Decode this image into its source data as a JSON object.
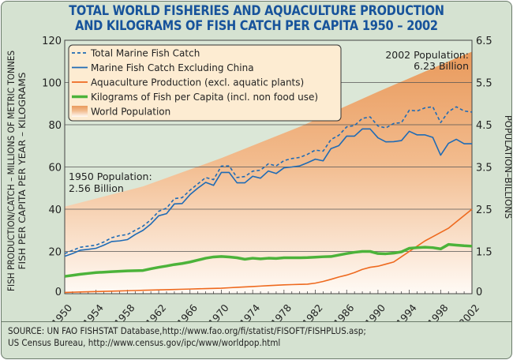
{
  "title": {
    "line1": "TOTAL WORLD FISHERIES AND AQUACULTURE PRODUCTION",
    "line2": "AND KILOGRAMS OF FISH CATCH PER CAPITA 1950 – 2002"
  },
  "source": {
    "line1": "SOURCE: UN FAO FISHSTAT Database,http://www.fao.org/fi/statist/FISOFT/FISHPLUS.asp;",
    "line2": "US Census Bureau, http://www.census.gov/ipc/www/worldpop.html"
  },
  "chart_data": {
    "type": "line",
    "title": "TOTAL WORLD FISHERIES AND AQUACULTURE PRODUCTION AND KILOGRAMS OF FISH CATCH PER CAPITA 1950 – 2002",
    "ylabel_left": [
      "FISH PRODUCTION/CATCH – MILLIONS OF METRIC TONNES",
      "FISH PER CAPITA PER YEAR – KILOGRAMS"
    ],
    "ylabel_right": "POPULATION–BILLIONS",
    "xlim": [
      1950,
      2002
    ],
    "ylim_left": [
      0,
      120
    ],
    "ylim_right": [
      0,
      6.5
    ],
    "x_ticks": [
      "1950",
      "1954",
      "1958",
      "1962",
      "1966",
      "1970",
      "1974",
      "1978",
      "1982",
      "1986",
      "1990",
      "1994",
      "1998",
      "2002"
    ],
    "y_ticks_left": [
      "0",
      "20",
      "40",
      "60",
      "80",
      "100",
      "120"
    ],
    "y_ticks_right": [
      "0",
      "1.5",
      "2.5",
      "3.5",
      "4.5",
      "5.5",
      "6.5"
    ],
    "grid": "horizontal",
    "legend_placement": "top-left",
    "annotations": [
      {
        "text1": "2002 Population:",
        "text2": "6.23 Billion"
      },
      {
        "text1": "1950 Population:",
        "text2": "2.56 Billion"
      }
    ],
    "years": [
      1950,
      1951,
      1952,
      1953,
      1954,
      1955,
      1956,
      1957,
      1958,
      1959,
      1960,
      1961,
      1962,
      1963,
      1964,
      1965,
      1966,
      1967,
      1968,
      1969,
      1970,
      1971,
      1972,
      1973,
      1974,
      1975,
      1976,
      1977,
      1978,
      1979,
      1980,
      1981,
      1982,
      1983,
      1984,
      1985,
      1986,
      1987,
      1988,
      1989,
      1990,
      1991,
      1992,
      1993,
      1994,
      1995,
      1996,
      1997,
      1998,
      1999,
      2000,
      2001,
      2002
    ],
    "series": [
      {
        "name": "Total Marine Fish Catch",
        "axis": "left",
        "color": "#1f6bb5",
        "style": "dashed",
        "values": [
          19,
          20.5,
          22,
          22.5,
          23,
          24.5,
          26.5,
          27.5,
          28,
          30,
          32,
          35,
          39,
          40.5,
          45,
          45.5,
          49,
          52,
          55,
          54,
          60.4,
          60.5,
          55,
          55.5,
          58,
          58.5,
          61.5,
          60.5,
          63,
          64,
          64.5,
          66,
          68,
          67.5,
          73,
          75,
          79,
          79.6,
          83,
          83.7,
          79.4,
          78.5,
          80.6,
          81,
          86.9,
          86.5,
          88,
          88.5,
          81,
          86.2,
          88.5,
          86.5,
          86
        ]
      },
      {
        "name": "Marine Fish Catch Excluding China",
        "axis": "left",
        "color": "#1f6bb5",
        "style": "solid",
        "values": [
          17.7,
          19,
          20.6,
          21,
          21.5,
          23,
          24.7,
          25,
          25.6,
          28,
          30,
          33,
          36.9,
          37.9,
          42.5,
          42.7,
          46.9,
          50,
          52.7,
          51.3,
          57.4,
          57.4,
          52.5,
          52.5,
          55.6,
          54.7,
          58.1,
          56.9,
          59.6,
          60,
          60.5,
          62,
          63.7,
          62.9,
          68.7,
          70.1,
          74.6,
          74.6,
          78,
          78,
          73.8,
          71.9,
          72,
          72.5,
          76.9,
          75.2,
          75.2,
          74,
          65.6,
          71.2,
          73.1,
          71,
          71
        ]
      },
      {
        "name": "Aquaculture Production (excl. aquatic plants)",
        "axis": "left",
        "color": "#ee6a1f",
        "style": "solid",
        "values": [
          0.6,
          0.7,
          0.8,
          0.9,
          1,
          1.1,
          1.2,
          1.3,
          1.4,
          1.5,
          1.6,
          1.7,
          1.8,
          1.9,
          2,
          2.1,
          2.2,
          2.3,
          2.4,
          2.5,
          2.6,
          2.8,
          3,
          3.2,
          3.4,
          3.6,
          3.8,
          4,
          4.2,
          4.3,
          4.4,
          4.5,
          5,
          5.8,
          6.8,
          7.9,
          8.8,
          10,
          11.5,
          12.5,
          13,
          14,
          15,
          17.5,
          20,
          22.5,
          25,
          27,
          29,
          31,
          34,
          37,
          40
        ]
      },
      {
        "name": "Kilograms of Fish per Capita (incl. non food use)",
        "axis": "left",
        "color": "#4cb33a",
        "style": "thick",
        "values": [
          8.2,
          8.7,
          9.2,
          9.6,
          10,
          10.2,
          10.4,
          10.6,
          10.8,
          10.9,
          11,
          11.8,
          12.5,
          13.1,
          13.8,
          14.3,
          15,
          15.9,
          16.8,
          17.4,
          17.6,
          17.4,
          17,
          16.3,
          16.8,
          16.5,
          16.8,
          16.7,
          17,
          17,
          17,
          17.1,
          17.3,
          17.5,
          17.6,
          18.3,
          19,
          19.6,
          20,
          20,
          19,
          18.9,
          19.2,
          19.8,
          21.5,
          21.8,
          22,
          21.8,
          21.2,
          23.3,
          23,
          22.7,
          22.5
        ]
      },
      {
        "name": "World Population",
        "axis": "right",
        "color": "#eca46a",
        "style": "area",
        "years": [
          1950,
          1960,
          1970,
          1980,
          1990,
          2000,
          2002
        ],
        "values": [
          2.56,
          3.04,
          3.71,
          4.45,
          5.28,
          6.08,
          6.23
        ]
      }
    ]
  }
}
